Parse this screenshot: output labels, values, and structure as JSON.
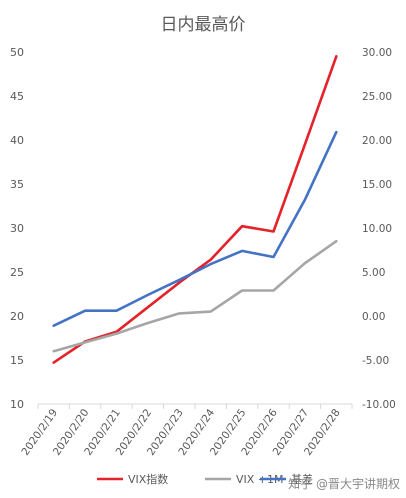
{
  "chart_data": {
    "type": "line",
    "title": "日内最高价",
    "categories": [
      "2020/2/19",
      "2020/2/20",
      "2020/2/21",
      "2020/2/22",
      "2020/2/23",
      "2020/2/24",
      "2020/2/25",
      "2020/2/26",
      "2020/2/27",
      "2020/2/28"
    ],
    "y_left": {
      "ticks": [
        "10",
        "15",
        "20",
        "25",
        "30",
        "35",
        "40",
        "45",
        "50"
      ],
      "ylim": [
        10,
        50
      ]
    },
    "y_right": {
      "ticks": [
        "-10.00",
        "-5.00",
        "0.00",
        "5.00",
        "10.00",
        "15.00",
        "20.00",
        "25.00",
        "30.00"
      ],
      "ylim": [
        -10,
        30
      ]
    },
    "series": [
      {
        "name": "VIX指数",
        "axis": "left",
        "color": "#e32229",
        "values": [
          14.7,
          17.1,
          18.2,
          21.0,
          23.8,
          26.4,
          30.2,
          29.6,
          39.5,
          49.5
        ]
      },
      {
        "name": "VIX +1M",
        "axis": "left",
        "color": "#a6a6a6",
        "values": [
          16.0,
          17.0,
          18.0,
          19.2,
          20.3,
          20.5,
          22.9,
          22.9,
          26.0,
          28.5
        ]
      },
      {
        "name": "基差",
        "axis": "right",
        "color": "#4472c4",
        "values": [
          -1.1,
          0.6,
          0.6,
          2.4,
          4.1,
          5.9,
          7.4,
          6.7,
          13.2,
          20.9
        ]
      }
    ],
    "grid": false,
    "legend_position": "bottom"
  },
  "watermark": "知乎 @晋大宇讲期权"
}
